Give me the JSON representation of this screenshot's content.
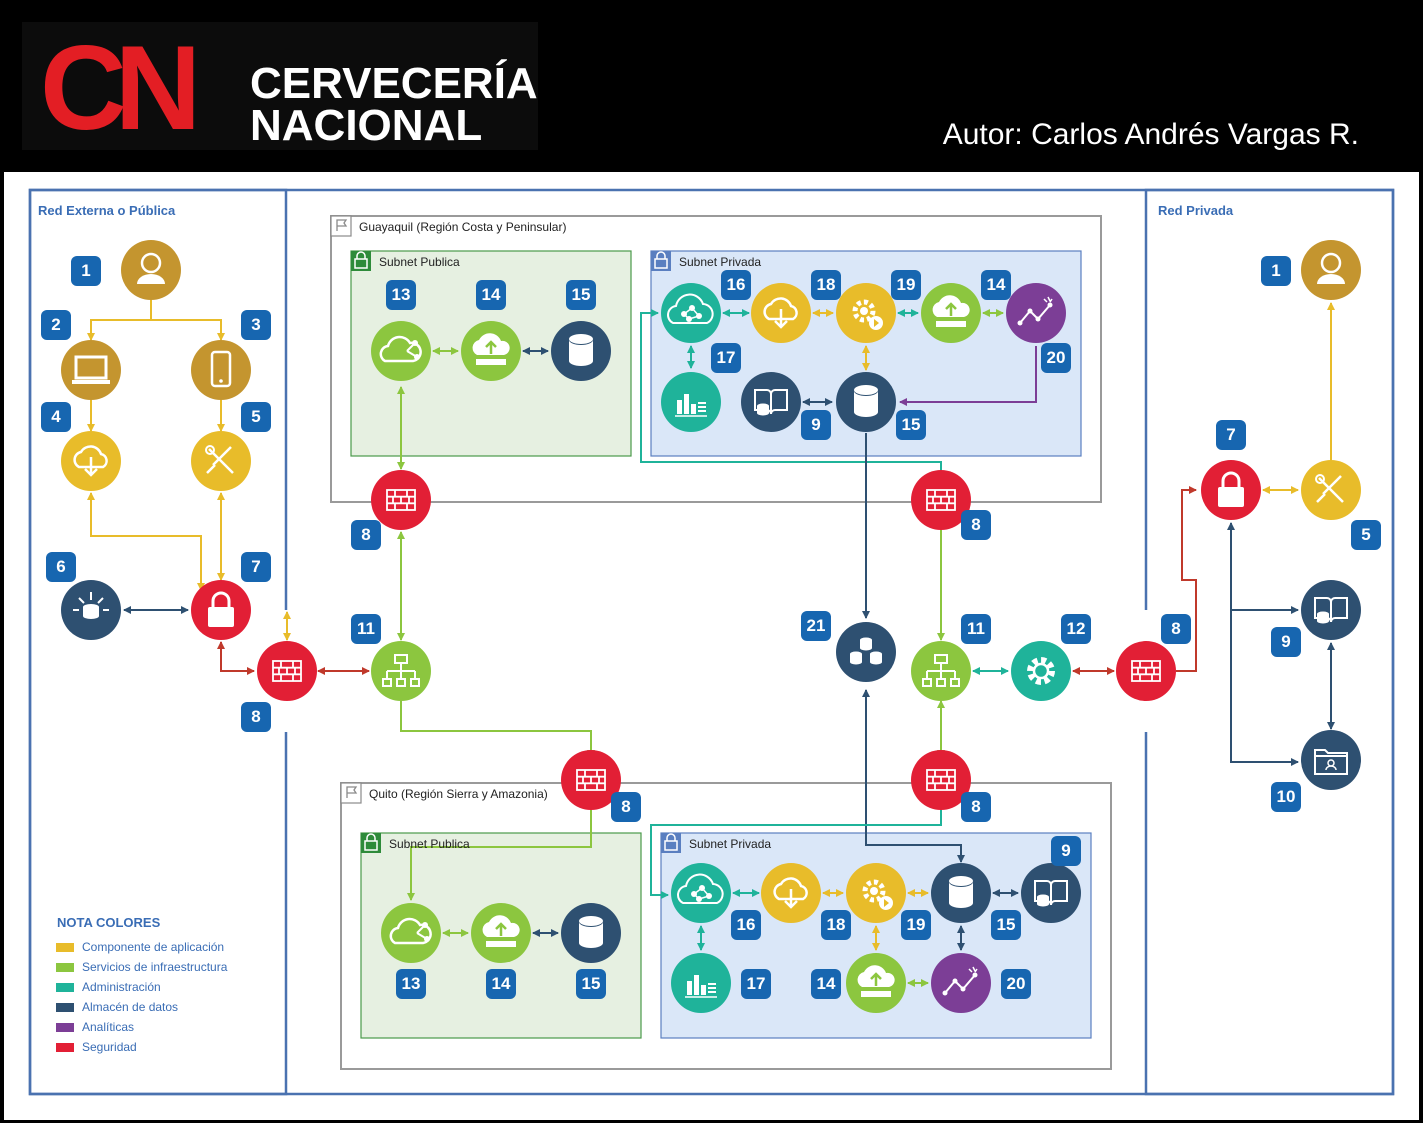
{
  "header": {
    "logo_mark": "CN",
    "logo_line1": "CERVECERÍA",
    "logo_line2": "NACIONAL",
    "author": "Autor: Carlos Andrés Vargas R."
  },
  "zones": {
    "external": "Red Externa o Pública",
    "private": "Red Privada"
  },
  "groups": {
    "guayaquil": "Guayaquil (Región Costa y Peninsular)",
    "quito": "Quito (Región Sierra y Amazonia)",
    "subnet_public": "Subnet Publica",
    "subnet_private": "Subnet Privada"
  },
  "legend": {
    "title": "NOTA COLORES",
    "items": [
      {
        "label": "Componente de aplicación",
        "color": "#e8bc2a"
      },
      {
        "label": "Servicios de infraestructura",
        "color": "#8cc63f"
      },
      {
        "label": "Administración",
        "color": "#1fb39a"
      },
      {
        "label": "Almacén de datos",
        "color": "#2e5071"
      },
      {
        "label": "Analíticas",
        "color": "#7c3e96"
      },
      {
        "label": "Seguridad",
        "color": "#e21f35"
      }
    ]
  },
  "colors": {
    "application": "#e8bc2a",
    "infrastructure": "#8cc63f",
    "administration": "#1fb39a",
    "data": "#2e5071",
    "analytics": "#7c3e96",
    "security": "#e21f35",
    "user": "#c4952f",
    "badge": "#1766b0",
    "zone_border": "#4a72b0",
    "subnet_public_fill": "#e6f0e1",
    "subnet_private_fill": "#dae7f8"
  },
  "badges": {
    "ext_user": "1",
    "ext_desktop": "2",
    "ext_mobile": "3",
    "ext_cloud": "4",
    "ext_tools": "5",
    "ext_integration": "6",
    "ext_lock": "7",
    "ext_firewall": "8",
    "gye_pub_cloud": "13",
    "gye_pub_upload": "14",
    "gye_pub_db": "15",
    "gye_priv_network": "16",
    "gye_priv_download": "18",
    "gye_priv_gear": "19",
    "gye_priv_upload": "14",
    "gye_priv_analytics": "20",
    "gye_priv_chart": "17",
    "gye_priv_book": "9",
    "gye_priv_db": "15",
    "fw_gye_left": "8",
    "fw_gye_right": "8",
    "router_left": "11",
    "db_cluster": "21",
    "router_right": "11",
    "admin_gear": "12",
    "fw_private": "8",
    "fw_uio_left": "8",
    "fw_uio_right": "8",
    "uio_pub_cloud": "13",
    "uio_pub_upload": "14",
    "uio_pub_db": "15",
    "uio_priv_network": "16",
    "uio_priv_download": "18",
    "uio_priv_gear": "19",
    "uio_priv_db": "15",
    "uio_priv_book": "9",
    "uio_priv_chart": "17",
    "uio_priv_upload": "14",
    "uio_priv_analytics": "20",
    "prv_user": "1",
    "prv_lock": "7",
    "prv_tools": "5",
    "prv_book": "9",
    "prv_folder": "10"
  },
  "icons": {
    "ext_user": "user-icon",
    "ext_desktop": "desktop-icon",
    "ext_mobile": "mobile-icon",
    "ext_cloud": "cloud-download-icon",
    "ext_tools": "tools-icon",
    "ext_integration": "data-integration-icon",
    "ext_lock": "lock-icon",
    "ext_firewall": "firewall-icon",
    "cloud_share": "cloud-share-icon",
    "cloud_upload": "cloud-upload-icon",
    "database": "database-icon",
    "network": "cloud-network-icon",
    "gear": "gear-play-icon",
    "analytics": "analytics-icon",
    "chart": "bar-chart-icon",
    "book": "catalog-book-icon",
    "router": "router-icon",
    "db_cluster": "database-cluster-icon",
    "admin_gear": "settings-gear-icon",
    "folder": "folder-user-icon"
  }
}
